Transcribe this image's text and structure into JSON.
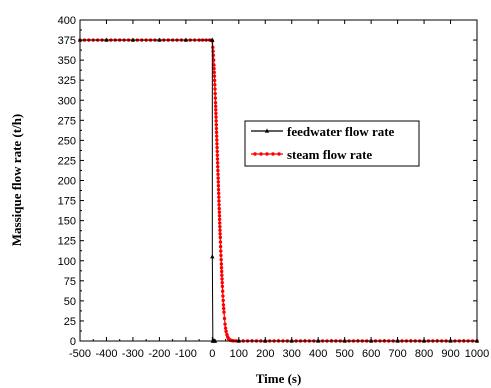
{
  "chart_data": {
    "type": "line",
    "xlabel": "Time (s)",
    "ylabel": "Massique flow rate (t/h)",
    "xlim": [
      -500,
      1000
    ],
    "ylim": [
      0,
      400
    ],
    "x_ticks": [
      -500,
      -400,
      -300,
      -200,
      -100,
      0,
      100,
      200,
      300,
      400,
      500,
      600,
      700,
      800,
      900,
      1000
    ],
    "y_ticks": [
      0,
      25,
      50,
      75,
      100,
      125,
      150,
      175,
      200,
      225,
      250,
      275,
      300,
      325,
      350,
      375,
      400
    ],
    "grid": false,
    "legend_position": "right",
    "series": [
      {
        "name": "feedwater flow rate",
        "color": "#000000",
        "marker": "triangle",
        "x": [
          -500,
          -400,
          -300,
          -200,
          -100,
          -1,
          0,
          0,
          2,
          4,
          6,
          8,
          10,
          100,
          200,
          300,
          400,
          500,
          600,
          700,
          800,
          900,
          1000
        ],
        "y": [
          375,
          375,
          375,
          375,
          375,
          375,
          375,
          105,
          0,
          0,
          0,
          0,
          0,
          0,
          0,
          0,
          0,
          0,
          0,
          0,
          0,
          0,
          0
        ]
      },
      {
        "name": "steam flow rate",
        "color": "#ff0000",
        "marker": "circle",
        "x": [
          -500,
          -450,
          -400,
          -350,
          -300,
          -250,
          -200,
          -150,
          -100,
          -50,
          -10,
          0,
          2,
          4,
          6,
          8,
          10,
          12,
          14,
          16,
          18,
          20,
          22,
          24,
          26,
          28,
          30,
          32,
          34,
          36,
          38,
          40,
          42,
          44,
          46,
          48,
          50,
          52,
          55,
          58,
          61,
          64,
          67,
          70,
          75,
          80,
          90,
          100,
          150,
          200,
          250,
          300,
          350,
          400,
          450,
          500,
          550,
          600,
          650,
          700,
          750,
          800,
          850,
          900,
          950,
          1000
        ],
        "y": [
          375,
          375,
          375,
          375,
          375,
          375,
          375,
          375,
          375,
          375,
          375,
          374,
          366,
          356,
          344,
          330,
          314,
          297,
          279,
          260,
          241,
          222,
          203,
          184,
          165,
          147,
          129,
          112,
          96,
          82,
          68,
          56,
          45,
          36,
          28,
          21,
          16,
          12,
          8,
          5,
          3,
          2,
          1.3,
          0.8,
          0.4,
          0.2,
          0.1,
          0,
          0,
          0,
          0,
          0,
          0,
          0,
          0,
          0,
          0,
          0,
          0,
          0,
          0,
          0,
          0,
          0,
          0,
          0
        ]
      }
    ]
  }
}
